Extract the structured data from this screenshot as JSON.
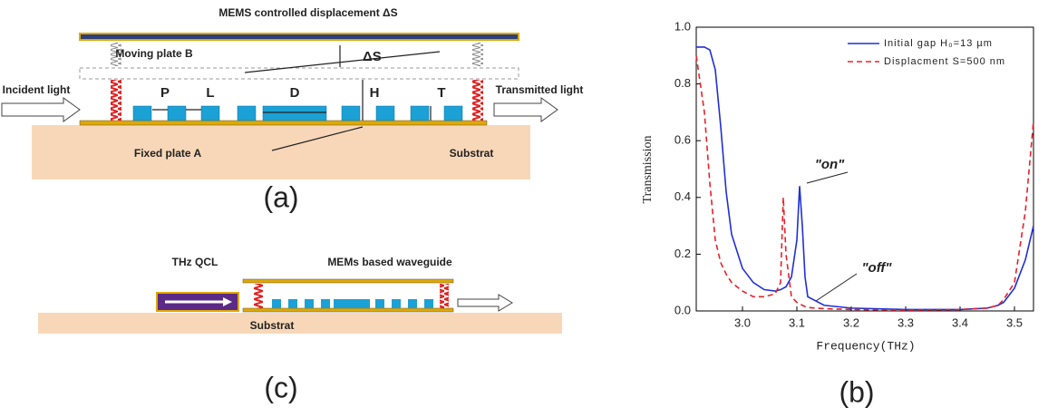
{
  "diagram_a": {
    "top_label": "MEMS controlled displacement ΔS",
    "moving_plate": "Moving plate B",
    "delta": "ΔS",
    "incident": "Incident light",
    "transmitted": "Transmitted light",
    "p": "P",
    "l": "L",
    "d": "D",
    "h": "H",
    "t": "T",
    "fixed_plate": "Fixed plate A",
    "substrate": "Substrat",
    "panel": "(a)"
  },
  "diagram_c": {
    "qcl": "THz QCL",
    "waveguide": "MEMs based waveguide",
    "substrate": "Substrat",
    "panel": "(c)"
  },
  "chart_data": {
    "type": "line",
    "panel": "(b)",
    "xlabel": "Frequency(THz)",
    "ylabel": "Transmission",
    "xlim": [
      2.915,
      3.535
    ],
    "ylim": [
      0,
      1
    ],
    "xticks": [
      {
        "value": 3,
        "label": "3.0"
      },
      3.1,
      3.2,
      3.3,
      3.4,
      3.5
    ],
    "yticks": [
      {
        "value": 0,
        "label": "0.0"
      },
      0.2,
      0.4,
      0.6,
      0.8,
      {
        "value": 1,
        "label": "1.0"
      }
    ],
    "legend": "upper right",
    "x": [
      2.915,
      2.93,
      2.94,
      2.95,
      2.96,
      2.97,
      2.98,
      3.0,
      3.02,
      3.04,
      3.06,
      3.07,
      3.075,
      3.08,
      3.09,
      3.1,
      3.105,
      3.11,
      3.115,
      3.12,
      3.15,
      3.2,
      3.3,
      3.4,
      3.45,
      3.47,
      3.48,
      3.5,
      3.52,
      3.535
    ],
    "series": [
      {
        "name": "Initial gap H₀=13 µm",
        "color": "#1f2fd6",
        "dash": "none",
        "values": [
          0.93,
          0.93,
          0.92,
          0.85,
          0.65,
          0.42,
          0.27,
          0.15,
          0.1,
          0.075,
          0.07,
          0.075,
          0.08,
          0.085,
          0.12,
          0.25,
          0.44,
          0.3,
          0.12,
          0.05,
          0.02,
          0.01,
          0.005,
          0.005,
          0.01,
          0.02,
          0.03,
          0.08,
          0.18,
          0.3
        ]
      },
      {
        "name": "Displacment S=500 nm",
        "color": "#e8202a",
        "dash": "6 4",
        "values": [
          0.9,
          0.7,
          0.45,
          0.25,
          0.17,
          0.13,
          0.1,
          0.07,
          0.05,
          0.05,
          0.06,
          0.1,
          0.4,
          0.2,
          0.05,
          0.03,
          0.025,
          0.02,
          0.015,
          0.012,
          0.008,
          0.005,
          0.003,
          0.005,
          0.01,
          0.02,
          0.04,
          0.1,
          0.35,
          0.67
        ]
      }
    ],
    "annotations": [
      "\"on\"",
      "\"off\""
    ]
  }
}
